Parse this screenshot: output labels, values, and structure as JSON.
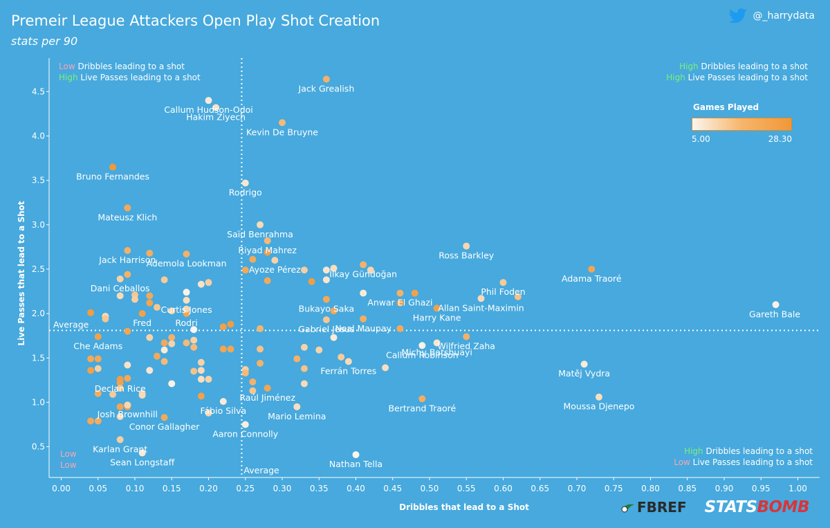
{
  "header": {
    "title": "Premeir League Attackers Open Play Shot Creation",
    "subtitle": "stats per 90",
    "handle": "@_harrydata"
  },
  "quadrants": {
    "top_left": {
      "line1_level": "Low",
      "line1_text": " Dribbles leading to a shot",
      "line2_level": "High",
      "line2_text": " Live Passes leading to a shot"
    },
    "top_right": {
      "line1_level": "High",
      "line1_text": " Dribbles leading to a shot",
      "line2_level": "High",
      "line2_text": " Live Passes leading to a shot"
    },
    "bottom_right": {
      "line1_level": "High",
      "line1_text": " Dribbles leading to a shot",
      "line2_level": "Low",
      "line2_text": " Live Passes leading to a shot"
    },
    "bottom_left": {
      "line1": "Low",
      "line2": "Low"
    }
  },
  "colors": {
    "background": "#47a9dd",
    "high": "#7cf07c",
    "low": "#f4a6b8",
    "dot_low": "#fbf6ef",
    "dot_high": "#f09839"
  },
  "legend": {
    "title": "Games Played",
    "min_label": "5.00",
    "max_label": "28.30"
  },
  "logos": {
    "fbref": "FBREF",
    "statsbomb_a": "STATS",
    "statsbomb_b": "BOMB"
  },
  "chart_data": {
    "type": "scatter",
    "xlabel": "Dribbles that lead to a Shot",
    "ylabel": "Live Passes that lead to a Shot",
    "xlim": [
      -0.02,
      1.0
    ],
    "ylim": [
      0.25,
      4.8
    ],
    "xticks": [
      "0.00",
      "0.05",
      "0.10",
      "0.15",
      "0.20",
      "0.25",
      "0.30",
      "0.35",
      "0.40",
      "0.45",
      "0.50",
      "0.55",
      "0.60",
      "0.65",
      "0.70",
      "0.75",
      "0.80",
      "0.85",
      "0.90",
      "0.95",
      "1.00"
    ],
    "yticks": [
      "0.5",
      "1.0",
      "1.5",
      "2.0",
      "2.5",
      "3.0",
      "3.5",
      "4.0",
      "4.5"
    ],
    "average_x": 0.245,
    "average_y": 1.81,
    "average_label": "Average",
    "color_scale": {
      "min": 5.0,
      "max": 28.3
    },
    "points": [
      {
        "name": "Jack Grealish",
        "x": 0.36,
        "y": 4.64,
        "g": 22
      },
      {
        "name": "Callum Hudson-Odoi",
        "x": 0.2,
        "y": 4.4,
        "g": 8
      },
      {
        "name": "Hakim Ziyech",
        "x": 0.21,
        "y": 4.32,
        "g": 10
      },
      {
        "name": "Kevin De Bruyne",
        "x": 0.3,
        "y": 4.15,
        "g": 20
      },
      {
        "name": "Bruno Fernandes",
        "x": 0.07,
        "y": 3.65,
        "g": 28
      },
      {
        "name": "Rodrigo",
        "x": 0.25,
        "y": 3.47,
        "g": 9
      },
      {
        "name": "Mateusz Klich",
        "x": 0.09,
        "y": 3.19,
        "g": 24
      },
      {
        "name": "Saïd Benrahma",
        "x": 0.27,
        "y": 3.0,
        "g": 12
      },
      {
        "name": "Riyad Mahrez",
        "x": 0.28,
        "y": 2.82,
        "g": 20
      },
      {
        "name": "Jack Harrison",
        "x": 0.09,
        "y": 2.71,
        "g": 22
      },
      {
        "name": "Ademola Lookman",
        "x": 0.17,
        "y": 2.67,
        "g": 22
      },
      {
        "name": "Ayoze Pérez",
        "x": 0.29,
        "y": 2.6,
        "g": 14
      },
      {
        "name": "İlkay Gündoğan",
        "x": 0.41,
        "y": 2.55,
        "g": 22
      },
      {
        "name": "Ross Barkley",
        "x": 0.55,
        "y": 2.76,
        "g": 13
      },
      {
        "name": "Dani Ceballos",
        "x": 0.08,
        "y": 2.39,
        "g": 14
      },
      {
        "name": "Adama Traoré",
        "x": 0.72,
        "y": 2.5,
        "g": 25
      },
      {
        "name": "Anwar El Ghazi",
        "x": 0.46,
        "y": 2.23,
        "g": 22
      },
      {
        "name": "Phil Foden",
        "x": 0.6,
        "y": 2.35,
        "g": 16
      },
      {
        "name": "Allan Saint-Maximin",
        "x": 0.57,
        "y": 2.17,
        "g": 12
      },
      {
        "name": "Curtis Jones",
        "x": 0.17,
        "y": 2.15,
        "g": 11
      },
      {
        "name": "Bukayo Saka",
        "x": 0.36,
        "y": 2.16,
        "g": 24
      },
      {
        "name": "Fred",
        "x": 0.11,
        "y": 2.0,
        "g": 26
      },
      {
        "name": "Rodri",
        "x": 0.17,
        "y": 2.0,
        "g": 25
      },
      {
        "name": "Gareth Bale",
        "x": 0.97,
        "y": 2.1,
        "g": 6
      },
      {
        "name": "Neal Maupay",
        "x": 0.41,
        "y": 1.94,
        "g": 23
      },
      {
        "name": "Harry Kane",
        "x": 0.51,
        "y": 2.06,
        "g": 26
      },
      {
        "name": "Gabriel Jesus",
        "x": 0.36,
        "y": 1.93,
        "g": 17
      },
      {
        "name": "Wilfried Zaha",
        "x": 0.55,
        "y": 1.74,
        "g": 22
      },
      {
        "name": "Che Adams",
        "x": 0.05,
        "y": 1.74,
        "g": 26
      },
      {
        "name": "Callum Robinson",
        "x": 0.49,
        "y": 1.64,
        "g": 6
      },
      {
        "name": "Michy Batshuayi",
        "x": 0.51,
        "y": 1.67,
        "g": 9
      },
      {
        "name": "Ferrán Torres",
        "x": 0.39,
        "y": 1.46,
        "g": 12
      },
      {
        "name": "Matěj Vydra",
        "x": 0.71,
        "y": 1.43,
        "g": 8
      },
      {
        "name": "Declan Rice",
        "x": 0.08,
        "y": 1.26,
        "g": 27
      },
      {
        "name": "Raúl Jiménez",
        "x": 0.28,
        "y": 1.16,
        "g": 25
      },
      {
        "name": "Bertrand Traoré",
        "x": 0.49,
        "y": 1.04,
        "g": 23
      },
      {
        "name": "Fábio Silva",
        "x": 0.22,
        "y": 1.01,
        "g": 8
      },
      {
        "name": "Moussa Djenepo",
        "x": 0.73,
        "y": 1.06,
        "g": 11
      },
      {
        "name": "Josh Brownhill",
        "x": 0.09,
        "y": 0.97,
        "g": 25
      },
      {
        "name": "Mario Lemina",
        "x": 0.32,
        "y": 0.95,
        "g": 11
      },
      {
        "name": "Conor Gallagher",
        "x": 0.14,
        "y": 0.83,
        "g": 24
      },
      {
        "name": "Aaron Connolly",
        "x": 0.25,
        "y": 0.75,
        "g": 7
      },
      {
        "name": "Karlan Grant",
        "x": 0.08,
        "y": 0.58,
        "g": 15
      },
      {
        "name": "Sean Longstaff",
        "x": 0.11,
        "y": 0.43,
        "g": 8
      },
      {
        "name": "Nathan Tella",
        "x": 0.4,
        "y": 0.41,
        "g": 5
      },
      {
        "name": "",
        "x": 0.37,
        "y": 2.51,
        "g": 11
      },
      {
        "name": "",
        "x": 0.36,
        "y": 2.49,
        "g": 9
      },
      {
        "name": "",
        "x": 0.42,
        "y": 2.49,
        "g": 13
      },
      {
        "name": "",
        "x": 0.33,
        "y": 2.49,
        "g": 15
      },
      {
        "name": "",
        "x": 0.25,
        "y": 2.49,
        "g": 24
      },
      {
        "name": "",
        "x": 0.26,
        "y": 2.61,
        "g": 24
      },
      {
        "name": "",
        "x": 0.28,
        "y": 2.69,
        "g": 26
      },
      {
        "name": "",
        "x": 0.28,
        "y": 2.37,
        "g": 24
      },
      {
        "name": "",
        "x": 0.34,
        "y": 2.36,
        "g": 27
      },
      {
        "name": "",
        "x": 0.36,
        "y": 2.38,
        "g": 9
      },
      {
        "name": "",
        "x": 0.41,
        "y": 2.23,
        "g": 8
      },
      {
        "name": "",
        "x": 0.48,
        "y": 2.23,
        "g": 26
      },
      {
        "name": "",
        "x": 0.46,
        "y": 2.12,
        "g": 26
      },
      {
        "name": "",
        "x": 0.62,
        "y": 2.19,
        "g": 18
      },
      {
        "name": "",
        "x": 0.37,
        "y": 2.03,
        "g": 24
      },
      {
        "name": "",
        "x": 0.46,
        "y": 1.83,
        "g": 24
      },
      {
        "name": "",
        "x": 0.37,
        "y": 1.73,
        "g": 8
      },
      {
        "name": "",
        "x": 0.33,
        "y": 1.62,
        "g": 14
      },
      {
        "name": "",
        "x": 0.35,
        "y": 1.59,
        "g": 14
      },
      {
        "name": "",
        "x": 0.38,
        "y": 1.51,
        "g": 16
      },
      {
        "name": "",
        "x": 0.32,
        "y": 1.49,
        "g": 22
      },
      {
        "name": "",
        "x": 0.33,
        "y": 1.38,
        "g": 18
      },
      {
        "name": "",
        "x": 0.44,
        "y": 1.39,
        "g": 11
      },
      {
        "name": "",
        "x": 0.33,
        "y": 1.21,
        "g": 12
      },
      {
        "name": "",
        "x": 0.27,
        "y": 1.6,
        "g": 18
      },
      {
        "name": "",
        "x": 0.27,
        "y": 1.44,
        "g": 22
      },
      {
        "name": "",
        "x": 0.25,
        "y": 1.37,
        "g": 15
      },
      {
        "name": "",
        "x": 0.25,
        "y": 1.33,
        "g": 20
      },
      {
        "name": "",
        "x": 0.26,
        "y": 1.23,
        "g": 22
      },
      {
        "name": "",
        "x": 0.26,
        "y": 1.13,
        "g": 17
      },
      {
        "name": "",
        "x": 0.27,
        "y": 1.83,
        "g": 21
      },
      {
        "name": "",
        "x": 0.23,
        "y": 1.88,
        "g": 27
      },
      {
        "name": "",
        "x": 0.22,
        "y": 1.85,
        "g": 26
      },
      {
        "name": "",
        "x": 0.22,
        "y": 1.6,
        "g": 25
      },
      {
        "name": "",
        "x": 0.23,
        "y": 1.6,
        "g": 25
      },
      {
        "name": "",
        "x": 0.18,
        "y": 1.82,
        "g": 5
      },
      {
        "name": "",
        "x": 0.18,
        "y": 1.7,
        "g": 14
      },
      {
        "name": "",
        "x": 0.18,
        "y": 1.62,
        "g": 20
      },
      {
        "name": "",
        "x": 0.17,
        "y": 1.67,
        "g": 20
      },
      {
        "name": "",
        "x": 0.19,
        "y": 1.45,
        "g": 14
      },
      {
        "name": "",
        "x": 0.18,
        "y": 1.35,
        "g": 18
      },
      {
        "name": "",
        "x": 0.19,
        "y": 1.36,
        "g": 12
      },
      {
        "name": "",
        "x": 0.19,
        "y": 1.26,
        "g": 11
      },
      {
        "name": "",
        "x": 0.2,
        "y": 1.26,
        "g": 14
      },
      {
        "name": "",
        "x": 0.19,
        "y": 1.07,
        "g": 26
      },
      {
        "name": "",
        "x": 0.2,
        "y": 0.88,
        "g": 13
      },
      {
        "name": "",
        "x": 0.15,
        "y": 1.73,
        "g": 22
      },
      {
        "name": "",
        "x": 0.14,
        "y": 1.67,
        "g": 24
      },
      {
        "name": "",
        "x": 0.15,
        "y": 1.66,
        "g": 14
      },
      {
        "name": "",
        "x": 0.14,
        "y": 1.59,
        "g": 8
      },
      {
        "name": "",
        "x": 0.13,
        "y": 1.52,
        "g": 24
      },
      {
        "name": "",
        "x": 0.14,
        "y": 1.46,
        "g": 20
      },
      {
        "name": "",
        "x": 0.12,
        "y": 1.36,
        "g": 9
      },
      {
        "name": "",
        "x": 0.12,
        "y": 1.73,
        "g": 14
      },
      {
        "name": "",
        "x": 0.15,
        "y": 1.21,
        "g": 6
      },
      {
        "name": "",
        "x": 0.11,
        "y": 1.1,
        "g": 14
      },
      {
        "name": "",
        "x": 0.11,
        "y": 1.08,
        "g": 12
      },
      {
        "name": "",
        "x": 0.09,
        "y": 1.8,
        "g": 25
      },
      {
        "name": "",
        "x": 0.09,
        "y": 1.42,
        "g": 10
      },
      {
        "name": "",
        "x": 0.09,
        "y": 1.27,
        "g": 24
      },
      {
        "name": "",
        "x": 0.08,
        "y": 1.22,
        "g": 26
      },
      {
        "name": "",
        "x": 0.08,
        "y": 1.16,
        "g": 18
      },
      {
        "name": "",
        "x": 0.07,
        "y": 1.09,
        "g": 16
      },
      {
        "name": "",
        "x": 0.09,
        "y": 0.95,
        "g": 26
      },
      {
        "name": "",
        "x": 0.08,
        "y": 0.95,
        "g": 25
      },
      {
        "name": "",
        "x": 0.09,
        "y": 0.97,
        "g": 13
      },
      {
        "name": "",
        "x": 0.08,
        "y": 0.84,
        "g": 12
      },
      {
        "name": "",
        "x": 0.05,
        "y": 1.49,
        "g": 24
      },
      {
        "name": "",
        "x": 0.04,
        "y": 1.49,
        "g": 24
      },
      {
        "name": "",
        "x": 0.05,
        "y": 1.38,
        "g": 15
      },
      {
        "name": "",
        "x": 0.04,
        "y": 1.36,
        "g": 26
      },
      {
        "name": "",
        "x": 0.05,
        "y": 1.1,
        "g": 23
      },
      {
        "name": "",
        "x": 0.04,
        "y": 0.79,
        "g": 24
      },
      {
        "name": "",
        "x": 0.05,
        "y": 0.79,
        "g": 23
      },
      {
        "name": "",
        "x": 0.06,
        "y": 1.97,
        "g": 12
      },
      {
        "name": "",
        "x": 0.06,
        "y": 1.94,
        "g": 17
      },
      {
        "name": "",
        "x": 0.04,
        "y": 2.01,
        "g": 27
      },
      {
        "name": "",
        "x": 0.08,
        "y": 2.2,
        "g": 12
      },
      {
        "name": "",
        "x": 0.1,
        "y": 2.21,
        "g": 17
      },
      {
        "name": "",
        "x": 0.1,
        "y": 2.16,
        "g": 15
      },
      {
        "name": "",
        "x": 0.12,
        "y": 2.2,
        "g": 24
      },
      {
        "name": "",
        "x": 0.12,
        "y": 2.12,
        "g": 25
      },
      {
        "name": "",
        "x": 0.13,
        "y": 2.07,
        "g": 17
      },
      {
        "name": "",
        "x": 0.15,
        "y": 2.03,
        "g": 14
      },
      {
        "name": "",
        "x": 0.17,
        "y": 2.05,
        "g": 13
      },
      {
        "name": "",
        "x": 0.17,
        "y": 2.24,
        "g": 6
      },
      {
        "name": "",
        "x": 0.14,
        "y": 2.38,
        "g": 16
      },
      {
        "name": "",
        "x": 0.19,
        "y": 2.33,
        "g": 10
      },
      {
        "name": "",
        "x": 0.2,
        "y": 2.35,
        "g": 15
      },
      {
        "name": "",
        "x": 0.09,
        "y": 2.44,
        "g": 22
      },
      {
        "name": "",
        "x": 0.12,
        "y": 2.68,
        "g": 23
      }
    ]
  }
}
